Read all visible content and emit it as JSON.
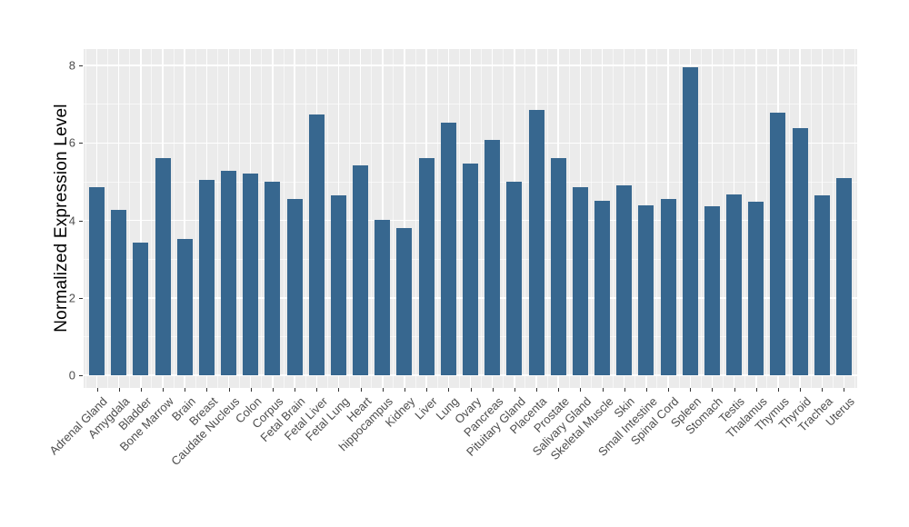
{
  "figure": {
    "kind": "ggplot-style bar chart",
    "title": "",
    "background": "#ffffff"
  },
  "colors": {
    "bar_fill": "#37678F",
    "panel_background": "#EBEBEB",
    "gridline": "#FFFFFF",
    "tick_text": "#4D4D4D",
    "tick_mark": "#333333",
    "axis_title_text": "#000000"
  },
  "chart_data": {
    "type": "bar",
    "title": "",
    "xlabel": "",
    "ylabel": "Normalized Expression Level",
    "categories": [
      "Adrenal Gland",
      "Amygdala",
      "Bladder",
      "Bone Marrow",
      "Brain",
      "Breast",
      "Caudate Nucleus",
      "Colon",
      "Corpus",
      "Fetal Brain",
      "Fetal Liver",
      "Fetal Lung",
      "Heart",
      "hippocampus",
      "Kidney",
      "Liver",
      "Lung",
      "Ovary",
      "Pancreas",
      "Pituitary Gland",
      "Placenta",
      "Prostate",
      "Salivary Gland",
      "Skeletal Muscle",
      "Skin",
      "Small Intestine",
      "Spinal Cord",
      "Spleen",
      "Stomach",
      "Testis",
      "Thalamus",
      "Thymus",
      "Thyroid",
      "Trachea",
      "Uterus"
    ],
    "values": [
      4.87,
      4.28,
      3.43,
      5.62,
      3.51,
      5.04,
      5.27,
      5.2,
      5.0,
      4.56,
      6.74,
      4.64,
      5.43,
      4.02,
      3.81,
      5.6,
      6.53,
      5.47,
      6.07,
      5.01,
      6.85,
      5.6,
      4.87,
      4.5,
      4.9,
      4.38,
      4.55,
      7.95,
      4.36,
      4.68,
      4.48,
      6.79,
      6.39,
      4.64,
      5.09
    ],
    "ylim": [
      0,
      8
    ],
    "yticks": [
      0,
      2,
      4,
      6,
      8
    ],
    "yticks_minor": [
      1,
      3,
      5,
      7
    ],
    "x_tick_rotation_deg": 45,
    "grid": "white major and minor gridlines on gray panel",
    "legend": "none",
    "bar_color": "#37678F"
  }
}
